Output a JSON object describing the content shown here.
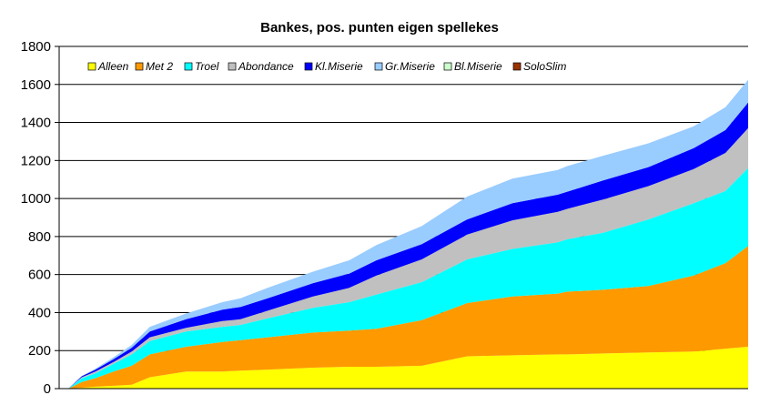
{
  "chart_data": {
    "type": "area",
    "stacked": true,
    "title": "Bankes, pos. punten eigen spellekes",
    "xlabel": "",
    "ylabel": "",
    "ylim": [
      0,
      1800
    ],
    "yticks": [
      0,
      200,
      400,
      600,
      800,
      1000,
      1200,
      1400,
      1600,
      1800
    ],
    "grid": true,
    "legend_position": "top-left",
    "x": [
      0,
      10,
      25,
      40,
      60,
      80,
      100,
      140,
      180,
      200,
      230,
      280,
      320,
      350,
      400,
      450,
      500,
      550,
      560,
      600,
      650,
      700,
      735,
      760
    ],
    "series": [
      {
        "name": "Alleen",
        "color": "#ffff00",
        "values": [
          0,
          0,
          5,
          10,
          15,
          20,
          60,
          90,
          90,
          95,
          100,
          110,
          115,
          115,
          120,
          170,
          175,
          180,
          180,
          185,
          190,
          195,
          210,
          220
        ]
      },
      {
        "name": "Met 2",
        "color": "#ff9900",
        "values": [
          0,
          0,
          30,
          45,
          75,
          100,
          120,
          130,
          155,
          160,
          170,
          185,
          190,
          200,
          240,
          280,
          310,
          320,
          330,
          335,
          350,
          400,
          450,
          530
        ]
      },
      {
        "name": "Troel",
        "color": "#00ffff",
        "values": [
          0,
          0,
          20,
          25,
          40,
          60,
          70,
          80,
          80,
          80,
          100,
          130,
          150,
          180,
          200,
          230,
          250,
          270,
          275,
          300,
          350,
          380,
          380,
          410
        ]
      },
      {
        "name": "Abondance",
        "color": "#c0c0c0",
        "values": [
          0,
          0,
          5,
          10,
          10,
          15,
          20,
          20,
          30,
          30,
          40,
          60,
          75,
          100,
          120,
          130,
          150,
          160,
          160,
          175,
          175,
          180,
          200,
          210
        ]
      },
      {
        "name": "Kl.Miserie",
        "color": "#0000ff",
        "values": [
          0,
          0,
          5,
          10,
          15,
          20,
          30,
          45,
          60,
          65,
          65,
          70,
          75,
          80,
          80,
          80,
          90,
          90,
          90,
          100,
          100,
          110,
          120,
          135
        ]
      },
      {
        "name": "Gr.Miserie",
        "color": "#99ccff",
        "values": [
          0,
          0,
          2,
          5,
          10,
          15,
          25,
          30,
          40,
          45,
          55,
          60,
          70,
          80,
          95,
          120,
          130,
          130,
          135,
          130,
          125,
          115,
          120,
          120
        ]
      },
      {
        "name": "Bl.Miserie",
        "color": "#ccffcc",
        "values": [
          0,
          0,
          0,
          0,
          0,
          0,
          0,
          0,
          0,
          0,
          0,
          0,
          0,
          0,
          0,
          0,
          0,
          0,
          0,
          0,
          0,
          0,
          0,
          0
        ]
      },
      {
        "name": "SoloSlim",
        "color": "#993300",
        "values": [
          0,
          0,
          0,
          0,
          0,
          0,
          0,
          0,
          0,
          0,
          0,
          0,
          0,
          0,
          0,
          0,
          0,
          0,
          0,
          0,
          0,
          0,
          0,
          0
        ]
      }
    ]
  }
}
